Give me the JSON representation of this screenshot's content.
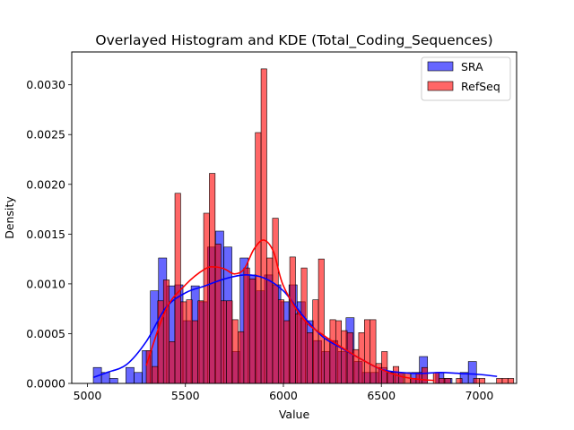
{
  "chart_data": {
    "type": "bar",
    "title": "Overlayed Histogram and KDE (Total_Coding_Sequences)",
    "xlabel": "Value",
    "ylabel": "Density",
    "xlim": [
      4920,
      7190
    ],
    "ylim": [
      0,
      0.00333
    ],
    "xticks": [
      5000,
      5500,
      6000,
      6500,
      7000
    ],
    "yticks": [
      0.0,
      0.0005,
      0.001,
      0.0015,
      0.002,
      0.0025,
      0.003
    ],
    "ytick_labels": [
      "0.0000",
      "0.0005",
      "0.0010",
      "0.0015",
      "0.0020",
      "0.0025",
      "0.0030"
    ],
    "grid": false,
    "legend_position": "top-right",
    "series": [
      {
        "name": "SRA",
        "color": "#0000ff",
        "bin_start": 5030,
        "bin_width": 41.6,
        "values": [
          0.00016,
          0.00011,
          5e-05,
          0.0,
          0.00016,
          0.00011,
          0.00033,
          0.00093,
          0.00126,
          0.00098,
          0.00099,
          0.00063,
          0.00098,
          0.00082,
          0.00137,
          0.00153,
          0.00137,
          0.00032,
          0.00126,
          0.00109,
          0.00093,
          0.00109,
          0.00099,
          0.00082,
          0.00099,
          0.00082,
          0.00063,
          0.00043,
          0.00032,
          0.00043,
          0.00032,
          0.00066,
          0.00022,
          0.00011,
          0.00011,
          0.00016,
          0.00011,
          0.00011,
          0.0,
          0.00011,
          0.00027,
          0.0,
          0.00011,
          5e-05,
          0.0,
          0.00011,
          0.00022
        ],
        "kde_x": [
          5030,
          5100,
          5200,
          5300,
          5400,
          5500,
          5600,
          5700,
          5800,
          5900,
          6000,
          6100,
          6200,
          6300,
          6400,
          6500,
          6600,
          6700,
          6800,
          6900,
          7000,
          7090
        ],
        "kde_y": [
          6e-05,
          0.00011,
          0.00019,
          0.00042,
          0.00076,
          0.00091,
          0.00098,
          0.00105,
          0.00109,
          0.00106,
          0.00093,
          0.00068,
          0.00047,
          0.00035,
          0.00024,
          0.00014,
          0.00011,
          0.0001,
          0.00011,
          0.0001,
          9e-05,
          7e-05
        ]
      },
      {
        "name": "RefSeq",
        "color": "#ff0000",
        "bin_start": 5300,
        "bin_width": 29.3,
        "values": [
          0.00033,
          0.00017,
          0.00083,
          0.00104,
          0.00042,
          0.00191,
          0.00082,
          0.00084,
          0.00063,
          0.00083,
          0.00171,
          0.00211,
          0.0014,
          0.00083,
          0.00083,
          0.00064,
          0.00052,
          0.00116,
          0.00105,
          0.00252,
          0.00316,
          0.00126,
          0.00166,
          0.00084,
          0.00063,
          0.00127,
          0.0007,
          0.00116,
          0.00051,
          0.00084,
          0.00125,
          0.00045,
          0.00064,
          0.00063,
          0.00053,
          0.00051,
          0.00034,
          0.00051,
          0.00064,
          0.00064,
          0.0002,
          0.00032,
          0.00011,
          0.00017,
          0.00011,
          0.00011,
          5e-05,
          0.00011,
          0.00016,
          0.0,
          0.00011,
          5e-05,
          5e-05,
          0.0,
          5e-05,
          0.0,
          0.0,
          5e-05,
          5e-05,
          0.0,
          0.0,
          5e-05,
          5e-05,
          5e-05,
          0.0,
          0.0
        ],
        "kde_x": [
          5300,
          5400,
          5500,
          5600,
          5650,
          5700,
          5750,
          5800,
          5850,
          5900,
          5950,
          6000,
          6100,
          6200,
          6300,
          6400,
          6500,
          6600,
          6700,
          6770
        ],
        "kde_y": [
          0.00018,
          0.00074,
          0.00099,
          0.00115,
          0.00117,
          0.00115,
          0.0011,
          0.00115,
          0.00135,
          0.00144,
          0.00132,
          0.00098,
          0.00065,
          0.00049,
          0.00036,
          0.00024,
          0.00014,
          7e-05,
          4e-05,
          3e-05
        ]
      }
    ]
  }
}
